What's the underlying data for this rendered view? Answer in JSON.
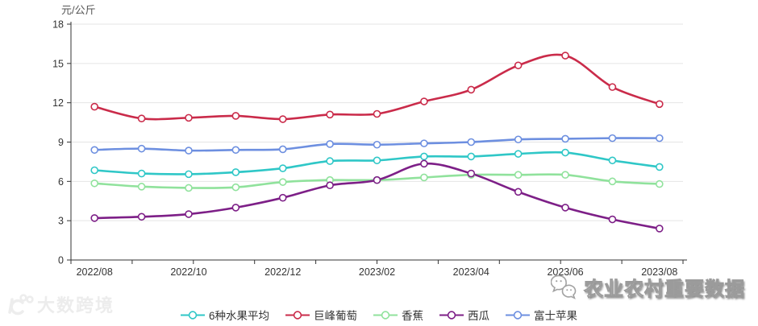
{
  "header": {
    "unit_label": "元/公斤"
  },
  "chart_data": {
    "type": "line",
    "x": [
      "2022/08",
      "2022/09",
      "2022/10",
      "2022/11",
      "2022/12",
      "2023/01",
      "2023/02",
      "2023/03",
      "2023/04",
      "2023/05",
      "2023/06",
      "2023/07",
      "2023/08"
    ],
    "x_tick_labels": [
      "2022/08",
      "2022/10",
      "2022/12",
      "2023/02",
      "2023/04",
      "2023/06",
      "2023/08"
    ],
    "ylabel": "元/公斤",
    "ylim": [
      0,
      18
    ],
    "y_ticks": [
      0,
      3,
      6,
      9,
      12,
      15,
      18
    ],
    "grid": true,
    "legend_position": "bottom",
    "series": [
      {
        "name": "6种水果平均",
        "color": "#2fc7c7",
        "values": [
          6.85,
          6.6,
          6.55,
          6.7,
          7.0,
          7.55,
          7.6,
          7.9,
          7.9,
          8.1,
          8.2,
          7.6,
          7.1
        ]
      },
      {
        "name": "巨峰葡萄",
        "color": "#ca2b4a",
        "values": [
          11.7,
          10.8,
          10.85,
          11.0,
          10.75,
          11.1,
          11.15,
          12.1,
          13.0,
          14.85,
          15.6,
          13.2,
          11.9
        ]
      },
      {
        "name": "香蕉",
        "color": "#90e29c",
        "values": [
          5.85,
          5.6,
          5.5,
          5.55,
          5.95,
          6.1,
          6.1,
          6.3,
          6.5,
          6.5,
          6.5,
          6.0,
          5.8
        ]
      },
      {
        "name": "西瓜",
        "color": "#7d1f87",
        "values": [
          3.2,
          3.3,
          3.5,
          4.0,
          4.75,
          5.7,
          6.1,
          7.35,
          6.6,
          5.2,
          4.0,
          3.1,
          2.4
        ]
      },
      {
        "name": "富士苹果",
        "color": "#6d8fe0",
        "values": [
          8.4,
          8.5,
          8.35,
          8.4,
          8.45,
          8.85,
          8.8,
          8.9,
          9.0,
          9.2,
          9.25,
          9.3,
          9.3
        ]
      }
    ]
  },
  "watermarks": {
    "bottom_left": "大数跨境",
    "bottom_right": "农业农村重要数据"
  }
}
